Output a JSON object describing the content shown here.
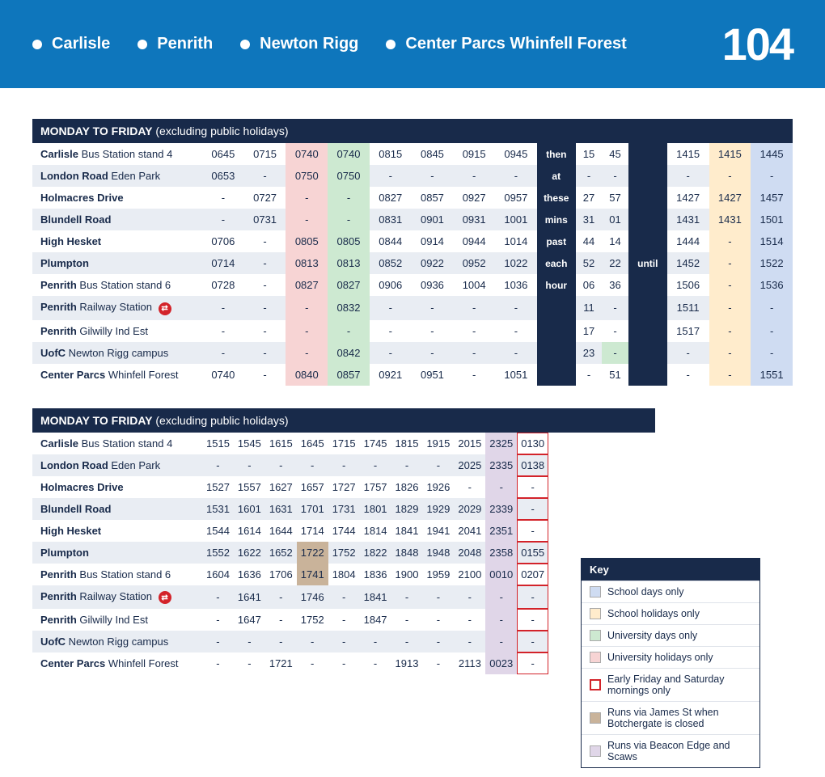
{
  "colors": {
    "header_bg": "#0e76bc",
    "header_fg": "#ffffff",
    "bar_bg": "#182a4a",
    "row_alt": "#e9edf3",
    "rail": "#d3232a",
    "key_school": "#cfdcf2",
    "key_schoolhol": "#ffeccc",
    "key_uni": "#cde9d1",
    "key_unihol": "#f7d4d4",
    "key_fri_border": "#d3232a",
    "key_james": "#c9b39a",
    "key_beacon": "#e0d6e8"
  },
  "header": {
    "stops": [
      "Carlisle",
      "Penrith",
      "Newton Rigg",
      "Center Parcs Whinfell Forest"
    ],
    "route_number": "104"
  },
  "blocks": [
    {
      "title_bold": "MONDAY TO FRIDAY",
      "title_light": " (excluding public holidays)",
      "note_left": [
        "then",
        "at",
        "these",
        "mins",
        "past",
        "each",
        "hour"
      ],
      "note_right": "until",
      "stops": [
        {
          "b": "Carlisle",
          "l": " Bus Station stand 4",
          "rail": false
        },
        {
          "b": "London Road",
          "l": " Eden Park",
          "rail": false
        },
        {
          "b": "Holmacres Drive",
          "l": "",
          "rail": false
        },
        {
          "b": "Blundell Road",
          "l": "",
          "rail": false
        },
        {
          "b": "High Hesket",
          "l": "",
          "rail": false
        },
        {
          "b": "Plumpton",
          "l": "",
          "rail": false
        },
        {
          "b": "Penrith",
          "l": " Bus Station stand 6",
          "rail": false
        },
        {
          "b": "Penrith",
          "l": " Railway Station",
          "rail": true
        },
        {
          "b": "Penrith",
          "l": " Gilwilly Ind Est",
          "rail": false
        },
        {
          "b": "UofC",
          "l": " Newton Rigg campus",
          "rail": false
        },
        {
          "b": "Center Parcs",
          "l": " Whinfell Forest",
          "rail": false
        }
      ],
      "col_tints": [
        null,
        null,
        "unihol",
        "uni",
        null,
        null,
        null,
        null,
        null,
        null,
        null,
        "schoolhol",
        "school",
        "school"
      ],
      "cell_tints": {
        "9_9": "uni"
      },
      "cells": [
        [
          "0645",
          "0715",
          "0740",
          "0740",
          "0815",
          "0845",
          "0915",
          "0945",
          "15",
          "45",
          "1415",
          "1415",
          "1445"
        ],
        [
          "0653",
          "-",
          "0750",
          "0750",
          "-",
          "-",
          "-",
          "-",
          "-",
          "-",
          "-",
          "-",
          "-"
        ],
        [
          "-",
          "0727",
          "-",
          "-",
          "0827",
          "0857",
          "0927",
          "0957",
          "27",
          "57",
          "1427",
          "1427",
          "1457"
        ],
        [
          "-",
          "0731",
          "-",
          "-",
          "0831",
          "0901",
          "0931",
          "1001",
          "31",
          "01",
          "1431",
          "1431",
          "1501"
        ],
        [
          "0706",
          "-",
          "0805",
          "0805",
          "0844",
          "0914",
          "0944",
          "1014",
          "44",
          "14",
          "1444",
          "-",
          "1514"
        ],
        [
          "0714",
          "-",
          "0813",
          "0813",
          "0852",
          "0922",
          "0952",
          "1022",
          "52",
          "22",
          "1452",
          "-",
          "1522"
        ],
        [
          "0728",
          "-",
          "0827",
          "0827",
          "0906",
          "0936",
          "1004",
          "1036",
          "06",
          "36",
          "1506",
          "-",
          "1536"
        ],
        [
          "-",
          "-",
          "-",
          "0832",
          "-",
          "-",
          "-",
          "-",
          "11",
          "-",
          "1511",
          "-",
          "-"
        ],
        [
          "-",
          "-",
          "-",
          "-",
          "-",
          "-",
          "-",
          "-",
          "17",
          "-",
          "1517",
          "-",
          "-"
        ],
        [
          "-",
          "-",
          "-",
          "0842",
          "-",
          "-",
          "-",
          "-",
          "23",
          "-",
          "-",
          "-",
          "-"
        ],
        [
          "0740",
          "-",
          "0840",
          "0857",
          "0921",
          "0951",
          "-",
          "1051",
          "-",
          "51",
          "-",
          "-",
          "1551"
        ]
      ],
      "note_left_at": 8,
      "note_right_at": 10
    },
    {
      "title_bold": "MONDAY TO FRIDAY",
      "title_light": " (excluding public holidays)",
      "stops": [
        {
          "b": "Carlisle",
          "l": " Bus Station stand 4",
          "rail": false
        },
        {
          "b": "London Road",
          "l": " Eden Park",
          "rail": false
        },
        {
          "b": "Holmacres Drive",
          "l": "",
          "rail": false
        },
        {
          "b": "Blundell Road",
          "l": "",
          "rail": false
        },
        {
          "b": "High Hesket",
          "l": "",
          "rail": false
        },
        {
          "b": "Plumpton",
          "l": "",
          "rail": false
        },
        {
          "b": "Penrith",
          "l": " Bus Station stand 6",
          "rail": false
        },
        {
          "b": "Penrith",
          "l": " Railway Station",
          "rail": true
        },
        {
          "b": "Penrith",
          "l": " Gilwilly Ind Est",
          "rail": false
        },
        {
          "b": "UofC",
          "l": " Newton Rigg campus",
          "rail": false
        },
        {
          "b": "Center Parcs",
          "l": " Whinfell Forest",
          "rail": false
        }
      ],
      "col_tints": [
        null,
        null,
        null,
        null,
        null,
        null,
        null,
        null,
        null,
        "beacon",
        "fri"
      ],
      "cell_tints": {
        "5_3": "james",
        "6_3": "james"
      },
      "cells": [
        [
          "1515",
          "1545",
          "1615",
          "1645",
          "1715",
          "1745",
          "1815",
          "1915",
          "2015",
          "2325",
          "0130"
        ],
        [
          "-",
          "-",
          "-",
          "-",
          "-",
          "-",
          "-",
          "-",
          "2025",
          "2335",
          "0138"
        ],
        [
          "1527",
          "1557",
          "1627",
          "1657",
          "1727",
          "1757",
          "1826",
          "1926",
          "-",
          "-",
          "-"
        ],
        [
          "1531",
          "1601",
          "1631",
          "1701",
          "1731",
          "1801",
          "1829",
          "1929",
          "2029",
          "2339",
          "-"
        ],
        [
          "1544",
          "1614",
          "1644",
          "1714",
          "1744",
          "1814",
          "1841",
          "1941",
          "2041",
          "2351",
          "-"
        ],
        [
          "1552",
          "1622",
          "1652",
          "1722",
          "1752",
          "1822",
          "1848",
          "1948",
          "2048",
          "2358",
          "0155"
        ],
        [
          "1604",
          "1636",
          "1706",
          "1741",
          "1804",
          "1836",
          "1900",
          "1959",
          "2100",
          "0010",
          "0207"
        ],
        [
          "-",
          "1641",
          "-",
          "1746",
          "-",
          "1841",
          "-",
          "-",
          "-",
          "-",
          "-"
        ],
        [
          "-",
          "1647",
          "-",
          "1752",
          "-",
          "1847",
          "-",
          "-",
          "-",
          "-",
          "-"
        ],
        [
          "-",
          "-",
          "-",
          "-",
          "-",
          "-",
          "-",
          "-",
          "-",
          "-",
          "-"
        ],
        [
          "-",
          "-",
          "1721",
          "-",
          "-",
          "-",
          "1913",
          "-",
          "2113",
          "0023",
          "-"
        ]
      ]
    }
  ],
  "key": {
    "title": "Key",
    "items": [
      {
        "label": "School days only",
        "swatch": "key_school"
      },
      {
        "label": "School holidays only",
        "swatch": "key_schoolhol"
      },
      {
        "label": "University days only",
        "swatch": "key_uni"
      },
      {
        "label": "University holidays only",
        "swatch": "key_unihol"
      },
      {
        "label": "Early Friday and Saturday mornings only",
        "swatch": "key_fri_border",
        "border": true
      },
      {
        "label": "Runs via James St when Botchergate is closed",
        "swatch": "key_james"
      },
      {
        "label": "Runs via Beacon Edge and Scaws",
        "swatch": "key_beacon"
      }
    ]
  }
}
